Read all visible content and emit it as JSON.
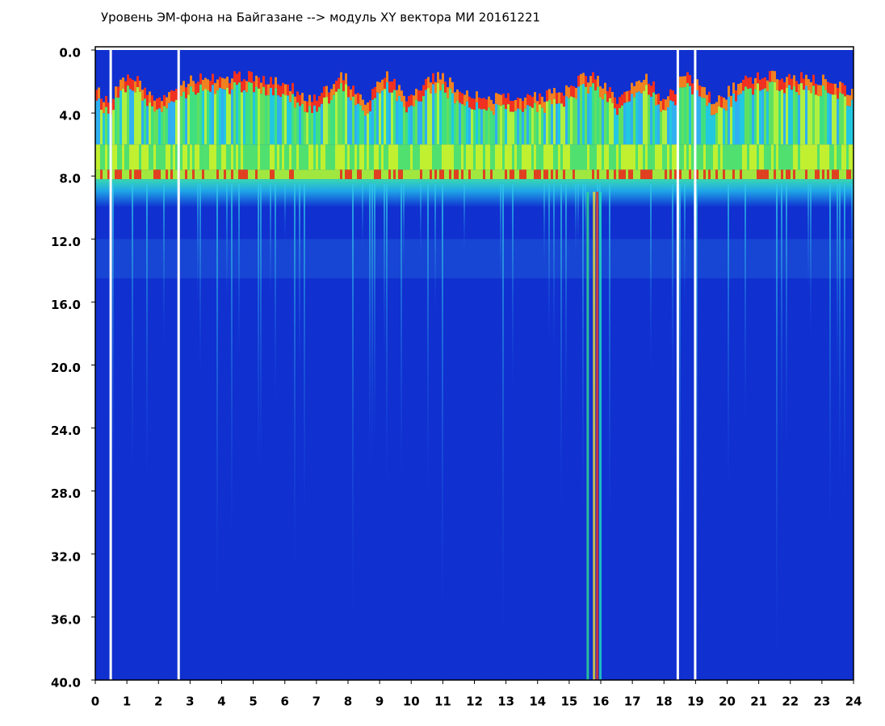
{
  "chart_data": {
    "type": "spectrogram",
    "title": "Уровень ЭМ-фона на Байгазане  -->  модуль XY вектора МИ  20161221",
    "xlim": [
      0,
      24
    ],
    "xticks": [
      0,
      1,
      2,
      3,
      4,
      5,
      6,
      7,
      8,
      9,
      10,
      11,
      12,
      13,
      14,
      15,
      16,
      17,
      18,
      19,
      20,
      21,
      22,
      23,
      24
    ],
    "ylim": [
      0,
      40
    ],
    "y_inverted": true,
    "yticks": [
      {
        "value": 0,
        "label": "0.0"
      },
      {
        "value": 4,
        "label": "4.0"
      },
      {
        "value": 8,
        "label": "8.0"
      },
      {
        "value": 12,
        "label": "12.0"
      },
      {
        "value": 16,
        "label": "16.0"
      },
      {
        "value": 20,
        "label": "20.0"
      },
      {
        "value": 24,
        "label": "24.0"
      },
      {
        "value": 28,
        "label": "28.0"
      },
      {
        "value": 32,
        "label": "32.0"
      },
      {
        "value": 36,
        "label": "36.0"
      },
      {
        "value": 40,
        "label": "40.0"
      }
    ]
  }
}
